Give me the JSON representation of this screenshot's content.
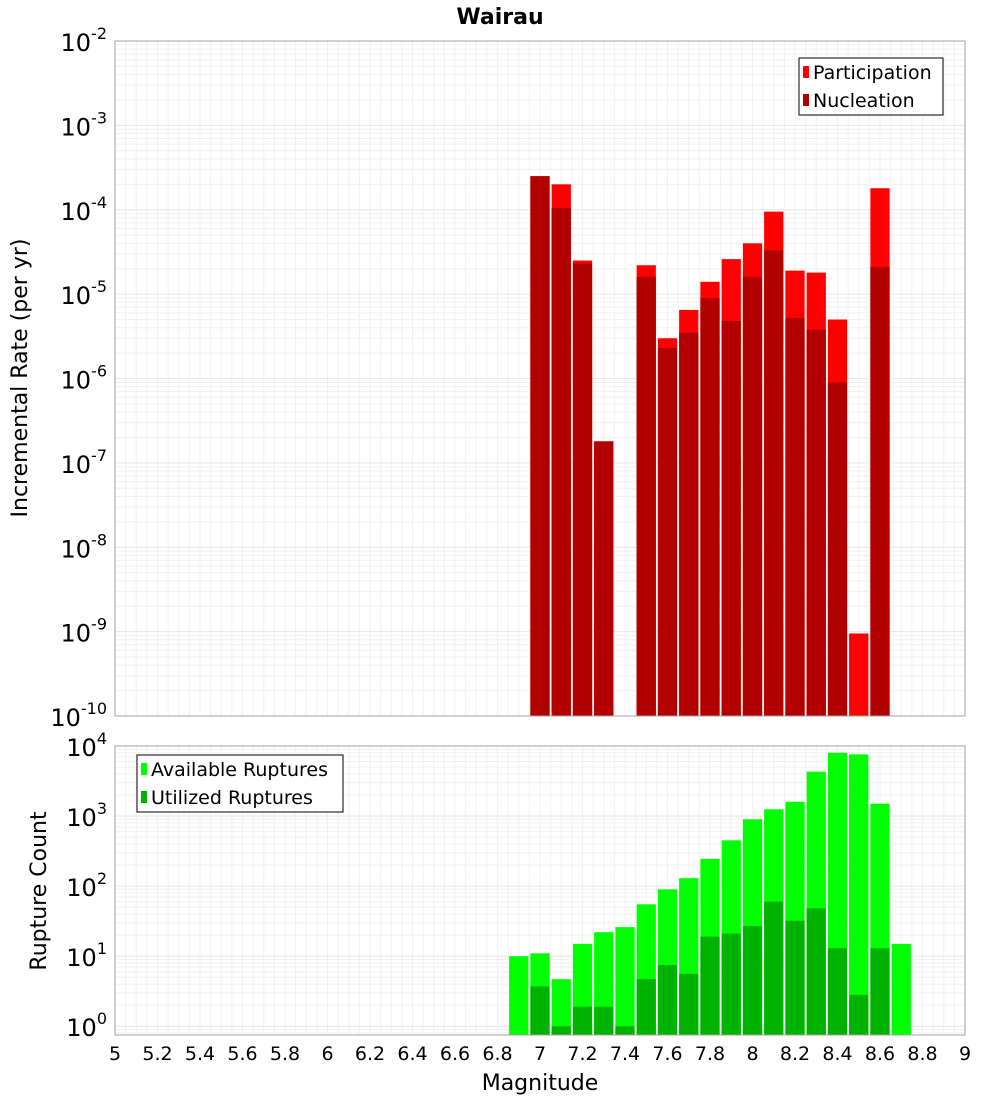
{
  "chart_data": [
    {
      "type": "bar",
      "title": "Wairau",
      "xlabel": "",
      "ylabel": "Incremental Rate (per yr)",
      "yscale": "log",
      "ylim": [
        1e-10,
        0.01
      ],
      "xlim": [
        5,
        9
      ],
      "y_ticks": [
        {
          "base": "10",
          "exp": "-10",
          "value": 1e-10
        },
        {
          "base": "10",
          "exp": "-9",
          "value": 1e-09
        },
        {
          "base": "10",
          "exp": "-8",
          "value": 1e-08
        },
        {
          "base": "10",
          "exp": "-7",
          "value": 1e-07
        },
        {
          "base": "10",
          "exp": "-6",
          "value": 1e-06
        },
        {
          "base": "10",
          "exp": "-5",
          "value": 1e-05
        },
        {
          "base": "10",
          "exp": "-4",
          "value": 0.0001
        },
        {
          "base": "10",
          "exp": "-3",
          "value": 0.001
        },
        {
          "base": "10",
          "exp": "-2",
          "value": 0.01
        }
      ],
      "legend_position": "top-right",
      "grid": true,
      "series": [
        {
          "name": "Participation",
          "color": "#ff0000",
          "x": [
            7.0,
            7.1,
            7.2,
            7.3,
            7.5,
            7.6,
            7.7,
            7.8,
            7.9,
            8.0,
            8.1,
            8.2,
            8.3,
            8.4,
            8.5,
            8.6
          ],
          "values": [
            0.00025,
            0.0002,
            2.5e-05,
            1.8e-07,
            2.2e-05,
            3e-06,
            6.5e-06,
            1.4e-05,
            2.6e-05,
            4e-05,
            9.5e-05,
            1.9e-05,
            1.8e-05,
            5e-06,
            9.5e-10,
            0.00018
          ]
        },
        {
          "name": "Nucleation",
          "color": "#b20000",
          "x": [
            7.0,
            7.1,
            7.2,
            7.3,
            7.5,
            7.6,
            7.7,
            7.8,
            7.9,
            8.0,
            8.1,
            8.2,
            8.3,
            8.4,
            8.6
          ],
          "values": [
            0.00025,
            0.000105,
            2.3e-05,
            1.8e-07,
            1.6e-05,
            2.3e-06,
            3.5e-06,
            9e-06,
            4.8e-06,
            1.6e-05,
            3.3e-05,
            5.2e-06,
            3.8e-06,
            9e-07,
            2.1e-05
          ]
        }
      ]
    },
    {
      "type": "bar",
      "title": "",
      "xlabel": "Magnitude",
      "ylabel": "Rupture Count",
      "yscale": "log",
      "ylim": [
        0.75,
        10000
      ],
      "xlim": [
        5,
        9
      ],
      "x_ticks": [
        "5",
        "5.2",
        "5.4",
        "5.6",
        "5.8",
        "6",
        "6.2",
        "6.4",
        "6.6",
        "6.8",
        "7",
        "7.2",
        "7.4",
        "7.6",
        "7.8",
        "8",
        "8.2",
        "8.4",
        "8.6",
        "8.8",
        "9"
      ],
      "y_ticks": [
        {
          "base": "10",
          "exp": "0",
          "value": 1
        },
        {
          "base": "10",
          "exp": "1",
          "value": 10
        },
        {
          "base": "10",
          "exp": "2",
          "value": 100
        },
        {
          "base": "10",
          "exp": "3",
          "value": 1000
        },
        {
          "base": "10",
          "exp": "4",
          "value": 10000
        }
      ],
      "legend_position": "top-left",
      "grid": true,
      "series": [
        {
          "name": "Available Ruptures",
          "color": "#00ff00",
          "x": [
            6.9,
            7.0,
            7.1,
            7.2,
            7.3,
            7.4,
            7.5,
            7.6,
            7.7,
            7.8,
            7.9,
            8.0,
            8.1,
            8.2,
            8.3,
            8.4,
            8.5,
            8.6,
            8.7
          ],
          "values": [
            10,
            11,
            4.7,
            15,
            22,
            26,
            55,
            90,
            130,
            245,
            450,
            900,
            1250,
            1600,
            4300,
            8000,
            7600,
            1500,
            15
          ]
        },
        {
          "name": "Utilized Ruptures",
          "color": "#00b200",
          "x": [
            7.0,
            7.1,
            7.2,
            7.3,
            7.4,
            7.5,
            7.6,
            7.7,
            7.8,
            7.9,
            8.0,
            8.1,
            8.2,
            8.3,
            8.4,
            8.5,
            8.6
          ],
          "values": [
            3.7,
            1.0,
            1.9,
            1.9,
            1.0,
            4.7,
            7.5,
            5.6,
            19,
            21,
            27,
            60,
            32,
            48,
            13,
            2.8,
            13
          ]
        }
      ]
    }
  ]
}
